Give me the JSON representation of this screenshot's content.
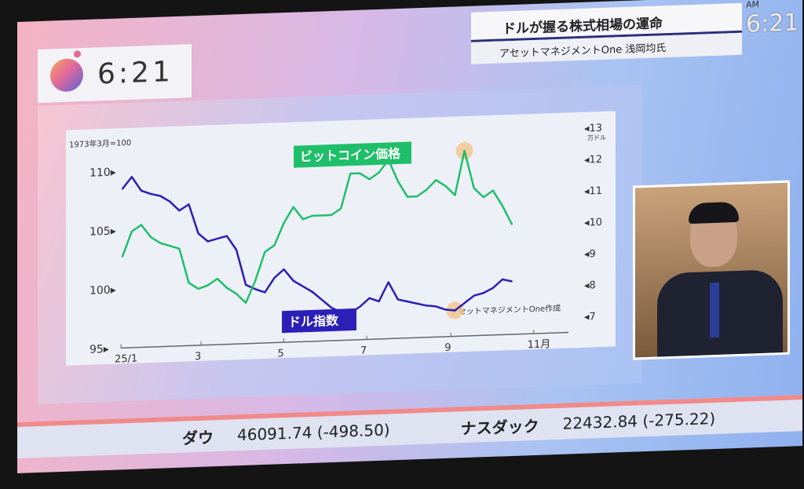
{
  "clock": {
    "time": "6:21"
  },
  "headline": {
    "title": "ドルが握る株式相場の運命",
    "subtitle": "アセットマネジメントOne 浅岡均氏",
    "corner_time": "6:21",
    "corner_label": "AM"
  },
  "ticker": [
    {
      "name": "ダウ",
      "value": "46091.74 (-498.50)"
    },
    {
      "name": "ナスダック",
      "value": "22432.84 (-275.22)"
    }
  ],
  "chart_data": {
    "type": "line",
    "left_axis": {
      "note": "1973年3月=100",
      "ticks": [
        95,
        100,
        105,
        110
      ],
      "ylim": [
        95,
        111
      ]
    },
    "right_axis": {
      "unit": "万ドル",
      "ticks": [
        7,
        8,
        9,
        10,
        11,
        12,
        13
      ],
      "ylim": [
        7,
        13
      ]
    },
    "x_ticks": [
      "25/1",
      "3",
      "5",
      "7",
      "9",
      "11月"
    ],
    "x_range": [
      "2025-01-01",
      "2025-11-15"
    ],
    "source": "アセットマネジメントOne作成",
    "colors": {
      "dollar": "#2b1fb8",
      "bitcoin": "#1fbf6a",
      "highlight": "#f2c48a"
    },
    "series": [
      {
        "name": "ドル指数",
        "axis": "left",
        "start": "2025-01-02",
        "interval_days": 7,
        "values": [
          108.5,
          109.5,
          108.3,
          108,
          107.8,
          107.3,
          106.5,
          107,
          104.5,
          103.8,
          104,
          104.2,
          103,
          100,
          99.6,
          99.3,
          100.5,
          101.2,
          100.2,
          99.7,
          99.2,
          98.5,
          97.8,
          97.4,
          97.3,
          97.8,
          98.5,
          98.2,
          99.8,
          98.3,
          98.1,
          97.9,
          97.7,
          97.6,
          97.3,
          97.2,
          97.8,
          98.4,
          98.6,
          99.0,
          99.7,
          99.5
        ]
      },
      {
        "name": "ビットコイン価格",
        "axis": "right",
        "start": "2025-01-02",
        "interval_days": 7,
        "values": [
          9.4,
          10.2,
          10.4,
          10.0,
          9.8,
          9.7,
          9.6,
          8.5,
          8.3,
          8.4,
          8.6,
          8.3,
          8.1,
          7.8,
          8.5,
          9.4,
          9.6,
          10.3,
          10.8,
          10.4,
          10.5,
          10.5,
          10.5,
          10.7,
          11.8,
          11.8,
          11.6,
          11.8,
          12.2,
          11.5,
          11.0,
          11.0,
          11.2,
          11.5,
          11.3,
          11.0,
          12.4,
          11.2,
          10.9,
          11.1,
          10.6,
          10.0
        ]
      }
    ]
  }
}
